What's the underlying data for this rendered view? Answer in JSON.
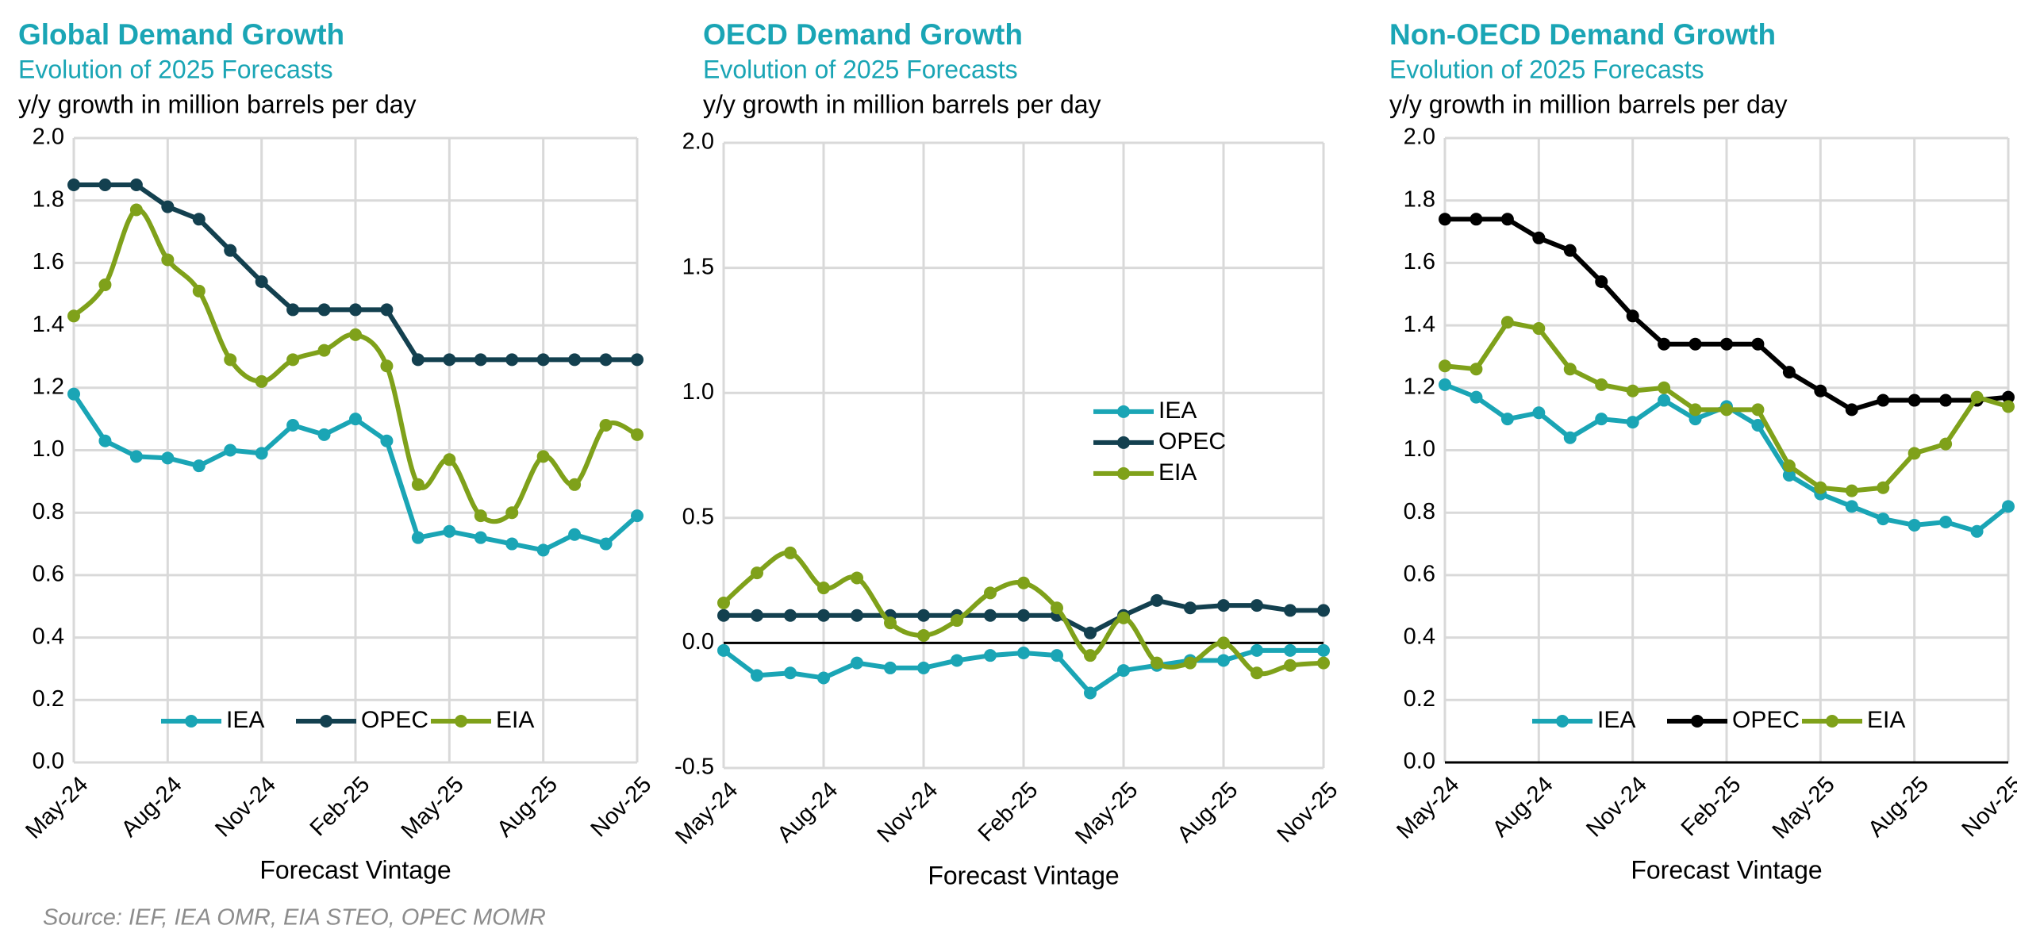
{
  "source": "Source: IEF, IEA OMR, EIA STEO, OPEC MOMR",
  "chart_data": [
    {
      "type": "line",
      "title": "Global Demand Growth",
      "subtitle": "Evolution of 2025 Forecasts",
      "ylabel": "y/y growth in million barrels per day",
      "xlabel": "Forecast Vintage",
      "categories": [
        "May-24",
        null,
        null,
        "Aug-24",
        null,
        null,
        "Nov-24",
        null,
        null,
        "Feb-25",
        null,
        null,
        "May-25",
        null,
        null,
        "Aug-25",
        null,
        null,
        "Nov-25"
      ],
      "series": [
        {
          "name": "IEA",
          "color": "#1aa5b5",
          "values": [
            1.18,
            1.03,
            0.98,
            0.975,
            0.95,
            1.0,
            0.99,
            1.08,
            1.05,
            1.1,
            1.03,
            0.72,
            0.74,
            0.72,
            0.7,
            0.68,
            0.73,
            0.7,
            0.79
          ]
        },
        {
          "name": "OPEC",
          "color": "#13404f",
          "values": [
            1.85,
            1.85,
            1.85,
            1.78,
            1.74,
            1.64,
            1.54,
            1.45,
            1.45,
            1.45,
            1.45,
            1.29,
            1.29,
            1.29,
            1.29,
            1.29,
            1.29,
            1.29,
            1.29
          ]
        },
        {
          "name": "EIA",
          "color": "#7fa11a",
          "smooth": true,
          "values": [
            1.43,
            1.53,
            1.77,
            1.61,
            1.51,
            1.29,
            1.22,
            1.29,
            1.32,
            1.37,
            1.27,
            0.89,
            0.97,
            0.79,
            0.8,
            0.98,
            0.89,
            1.08,
            1.05
          ]
        }
      ],
      "ylim": [
        0,
        2
      ],
      "yticks": [
        {
          "value": 0,
          "label": "0.0"
        },
        0.2,
        0.4,
        0.6,
        0.8,
        {
          "value": 1,
          "label": "1.0"
        },
        1.2,
        1.4,
        1.6,
        1.8,
        {
          "value": 2,
          "label": "2.0"
        }
      ],
      "grid": true,
      "zero_line": false,
      "legend": "bottom"
    },
    {
      "type": "line",
      "title": "OECD Demand Growth",
      "subtitle": "Evolution of 2025 Forecasts",
      "ylabel": "y/y growth in million barrels per day",
      "xlabel": "Forecast Vintage",
      "categories": [
        "May-24",
        null,
        null,
        "Aug-24",
        null,
        null,
        "Nov-24",
        null,
        null,
        "Feb-25",
        null,
        null,
        "May-25",
        null,
        null,
        "Aug-25",
        null,
        null,
        "Nov-25"
      ],
      "series": [
        {
          "name": "IEA",
          "color": "#1aa5b5",
          "values": [
            -0.03,
            -0.13,
            -0.12,
            -0.14,
            -0.08,
            -0.1,
            -0.1,
            -0.07,
            -0.05,
            -0.04,
            -0.05,
            -0.2,
            -0.11,
            -0.09,
            -0.07,
            -0.07,
            -0.03,
            -0.03,
            -0.03
          ]
        },
        {
          "name": "OPEC",
          "color": "#13404f",
          "values": [
            0.11,
            0.11,
            0.11,
            0.11,
            0.11,
            0.11,
            0.11,
            0.11,
            0.11,
            0.11,
            0.11,
            0.04,
            0.11,
            0.17,
            0.14,
            0.15,
            0.15,
            0.13,
            0.13
          ]
        },
        {
          "name": "EIA",
          "color": "#7fa11a",
          "smooth": true,
          "values": [
            0.16,
            0.28,
            0.36,
            0.22,
            0.26,
            0.08,
            0.03,
            0.09,
            0.2,
            0.24,
            0.14,
            -0.05,
            0.1,
            -0.08,
            -0.08,
            0.0,
            -0.12,
            -0.09,
            -0.08
          ]
        }
      ],
      "ylim": [
        -0.5,
        2
      ],
      "yticks": [
        -0.5,
        {
          "value": 0,
          "label": "0.0"
        },
        0.5,
        {
          "value": 1,
          "label": "1.0"
        },
        1.5,
        {
          "value": 2,
          "label": "2.0"
        }
      ],
      "grid": true,
      "zero_line": true,
      "legend": "right"
    },
    {
      "type": "line",
      "title": "Non-OECD Demand Growth",
      "subtitle": "Evolution of 2025 Forecasts",
      "ylabel": "y/y growth in million barrels per day",
      "xlabel": "Forecast Vintage",
      "categories": [
        "May-24",
        null,
        null,
        "Aug-24",
        null,
        null,
        "Nov-24",
        null,
        null,
        "Feb-25",
        null,
        null,
        "May-25",
        null,
        null,
        "Aug-25",
        null,
        null,
        "Nov-25"
      ],
      "series": [
        {
          "name": "IEA",
          "color": "#1aa5b5",
          "values": [
            1.21,
            1.17,
            1.1,
            1.12,
            1.04,
            1.1,
            1.09,
            1.16,
            1.1,
            1.14,
            1.08,
            0.92,
            0.86,
            0.82,
            0.78,
            0.76,
            0.77,
            0.74,
            0.82
          ]
        },
        {
          "name": "OPEC",
          "color": "#000000",
          "values": [
            1.74,
            1.74,
            1.74,
            1.68,
            1.64,
            1.54,
            1.43,
            1.34,
            1.34,
            1.34,
            1.34,
            1.25,
            1.19,
            1.13,
            1.16,
            1.16,
            1.16,
            1.16,
            1.17
          ]
        },
        {
          "name": "EIA",
          "color": "#7fa11a",
          "values": [
            1.27,
            1.26,
            1.41,
            1.39,
            1.26,
            1.21,
            1.19,
            1.2,
            1.13,
            1.13,
            1.13,
            0.95,
            0.88,
            0.87,
            0.88,
            0.99,
            1.02,
            1.17,
            1.14
          ]
        }
      ],
      "ylim": [
        0,
        2
      ],
      "yticks": [
        {
          "value": 0,
          "label": "0.0"
        },
        0.2,
        0.4,
        0.6,
        0.8,
        {
          "value": 1,
          "label": "1.0"
        },
        1.2,
        1.4,
        1.6,
        1.8,
        {
          "value": 2,
          "label": "2.0"
        }
      ],
      "grid": true,
      "zero_line": true,
      "legend": "bottom"
    }
  ]
}
